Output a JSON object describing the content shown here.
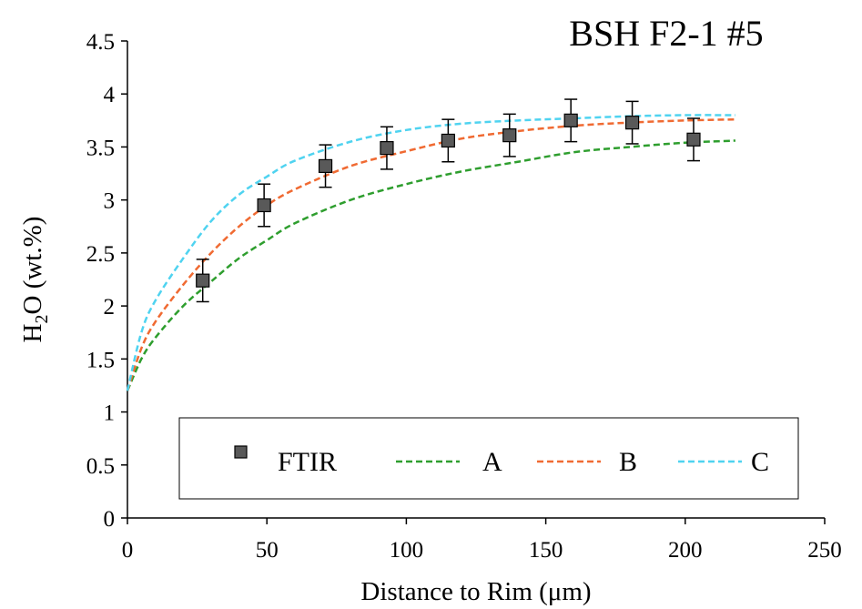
{
  "chart_data": {
    "type": "scatter",
    "title": "BSH F2-1 #5",
    "xlabel": "Distance to Rim (μm)",
    "ylabel": {
      "main": "H",
      "sub": "2",
      "rest": "O (wt.%)"
    },
    "xlim": [
      0,
      250
    ],
    "ylim": [
      0,
      4.5
    ],
    "xticks": [
      "0",
      "50",
      "100",
      "150",
      "200",
      "250"
    ],
    "yticks": [
      "0",
      "0.5",
      "1",
      "1.5",
      "2",
      "2.5",
      "3",
      "3.5",
      "4",
      "4.5"
    ],
    "grid": false,
    "legend_position": "bottom",
    "series": [
      {
        "name": "FTIR",
        "kind": "points",
        "color": "#595959",
        "x": [
          27,
          49,
          71,
          93,
          115,
          137,
          159,
          181,
          203
        ],
        "y": [
          2.24,
          2.95,
          3.32,
          3.49,
          3.56,
          3.61,
          3.75,
          3.73,
          3.57
        ],
        "error": [
          0.2,
          0.2,
          0.2,
          0.2,
          0.2,
          0.2,
          0.2,
          0.2,
          0.2
        ]
      },
      {
        "name": "A",
        "kind": "dashed-line",
        "color": "#2e9e2e",
        "x": [
          0,
          5,
          10,
          20,
          30,
          40,
          50,
          60,
          80,
          100,
          120,
          140,
          160,
          180,
          200,
          218
        ],
        "y": [
          1.2,
          1.5,
          1.7,
          2.0,
          2.23,
          2.45,
          2.62,
          2.78,
          3.0,
          3.15,
          3.27,
          3.36,
          3.45,
          3.5,
          3.54,
          3.56
        ]
      },
      {
        "name": "B",
        "kind": "dashed-line",
        "color": "#f06a32",
        "x": [
          0,
          5,
          10,
          20,
          30,
          40,
          50,
          60,
          80,
          100,
          120,
          140,
          160,
          180,
          200,
          218
        ],
        "y": [
          1.2,
          1.6,
          1.85,
          2.2,
          2.5,
          2.75,
          2.95,
          3.1,
          3.32,
          3.46,
          3.58,
          3.65,
          3.7,
          3.73,
          3.75,
          3.76
        ]
      },
      {
        "name": "C",
        "kind": "dashed-line",
        "color": "#4fd3f0",
        "x": [
          0,
          5,
          10,
          20,
          30,
          40,
          50,
          60,
          80,
          100,
          120,
          140,
          160,
          180,
          200,
          218
        ],
        "y": [
          1.2,
          1.75,
          2.05,
          2.45,
          2.8,
          3.05,
          3.22,
          3.37,
          3.55,
          3.66,
          3.72,
          3.75,
          3.77,
          3.79,
          3.8,
          3.8
        ]
      }
    ]
  }
}
